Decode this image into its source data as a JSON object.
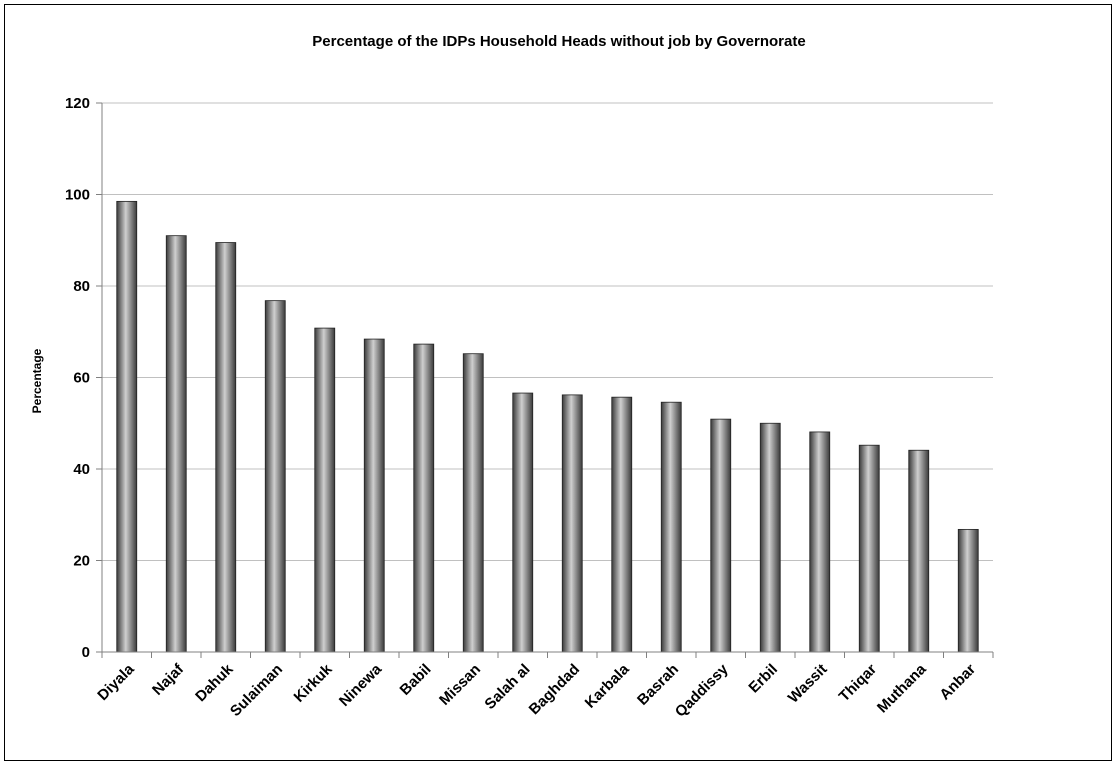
{
  "chart_data": {
    "type": "bar",
    "title": "Percentage of the IDPs Household Heads without job by Governorate",
    "xlabel": "",
    "ylabel": "Percentage",
    "categories": [
      "Diyala",
      "Najaf",
      "Dahuk",
      "Sulaiman",
      "Kirkuk",
      "Ninewa",
      "Babil",
      "Missan",
      "Salah al",
      "Baghdad",
      "Karbala",
      "Basrah",
      "Qaddissy",
      "Erbil",
      "Wassit",
      "Thiqar",
      "Muthana",
      "Anbar"
    ],
    "values": [
      98.5,
      91,
      89.5,
      76.8,
      70.8,
      68.4,
      67.3,
      65.2,
      56.6,
      56.2,
      55.7,
      54.6,
      50.9,
      50.0,
      48.1,
      45.2,
      44.1,
      26.8
    ],
    "ylim": [
      0,
      120
    ],
    "yticks": [
      0,
      20,
      40,
      60,
      80,
      100,
      120
    ],
    "grid": true,
    "legend": "none",
    "colors": {
      "bar_dark": "#3a3a3a",
      "bar_light": "#cfcfcf",
      "grid": "#c0c0c0",
      "axis": "#808080"
    }
  }
}
